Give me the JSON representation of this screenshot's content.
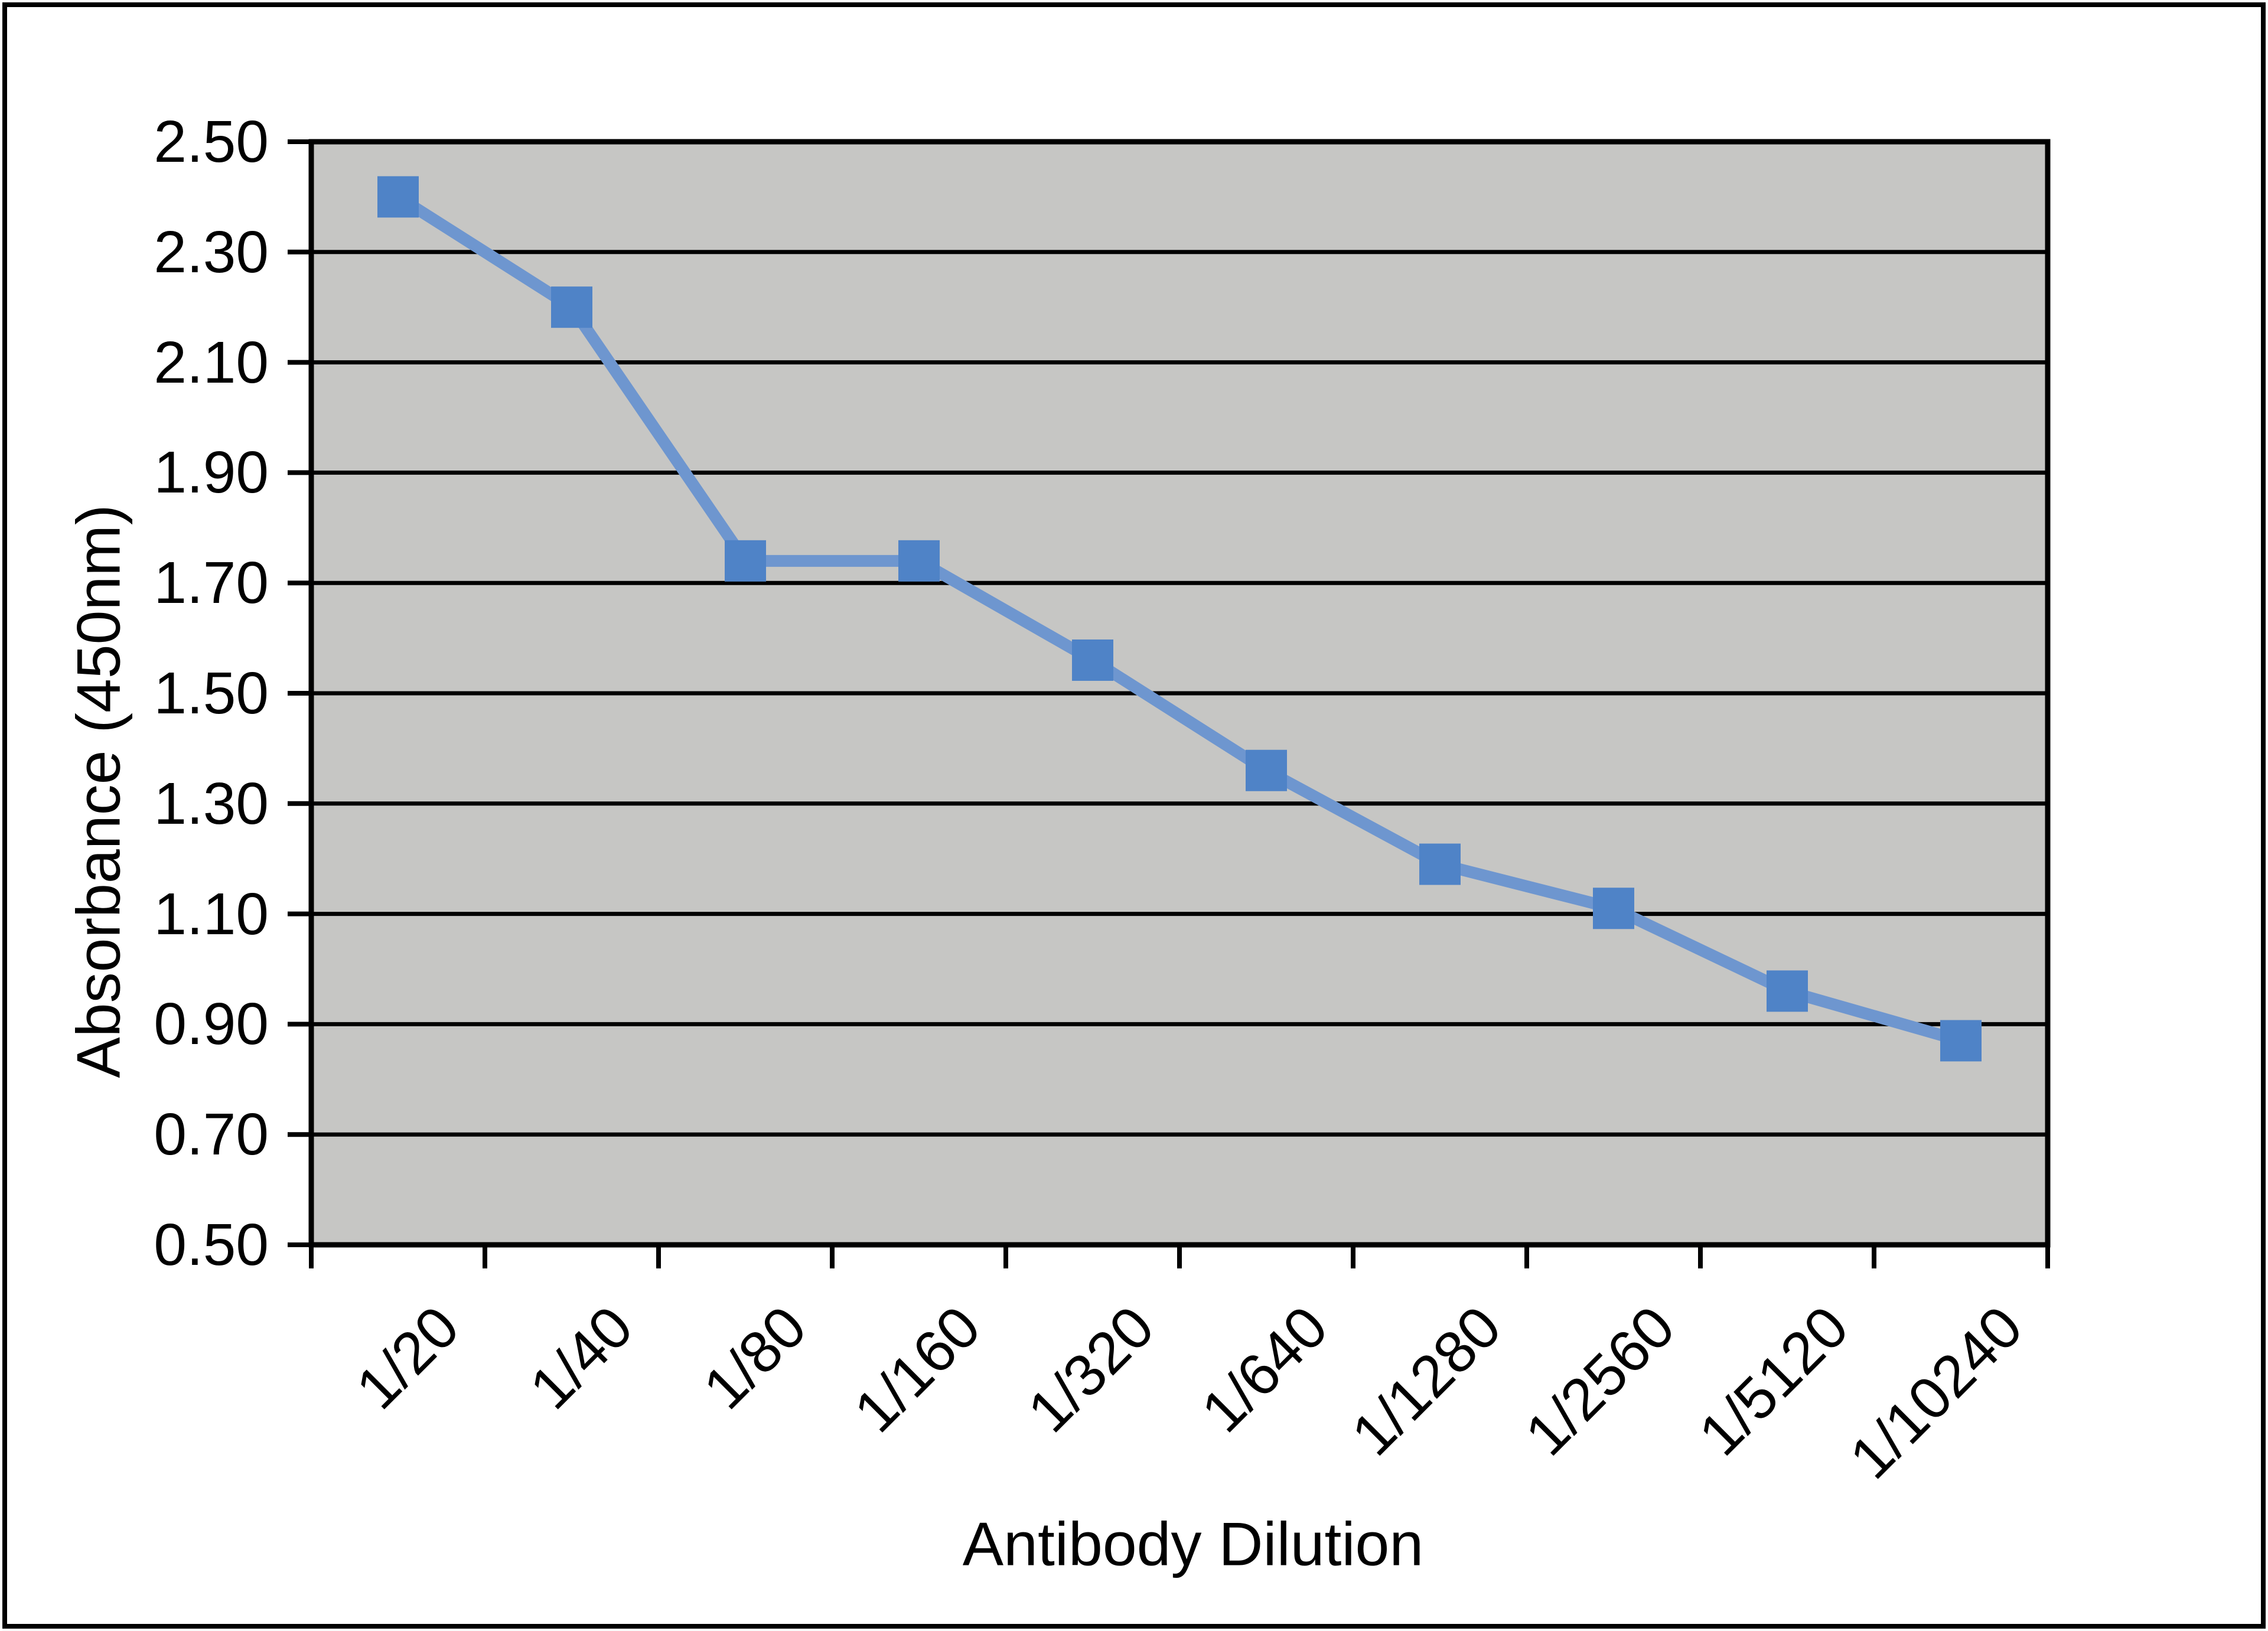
{
  "figure": {
    "background_color": "#ffffff",
    "border_color": "#000000"
  },
  "chart_data": {
    "type": "line",
    "title": "",
    "xlabel": "Antibody Dilution",
    "ylabel": "Absorbance (450nm)",
    "categories": [
      "1/20",
      "1/40",
      "1/80",
      "1/160",
      "1/320",
      "1/640",
      "1/1280",
      "1/2560",
      "1/5120",
      "1/10240"
    ],
    "values": [
      2.4,
      2.2,
      1.74,
      1.74,
      1.56,
      1.36,
      1.19,
      1.11,
      0.96,
      0.87
    ],
    "ylim": [
      0.5,
      2.5
    ],
    "ytick_step": 0.2,
    "ytick_labels": [
      "2.50",
      "2.30",
      "2.10",
      "1.90",
      "1.70",
      "1.50",
      "1.30",
      "1.10",
      "0.90",
      "0.70",
      "0.50"
    ],
    "grid": "horizontal",
    "legend": "none",
    "plot_bg_color": "#c6c6c4",
    "gridline_color": "#000000",
    "axis_color": "#000000",
    "line_color": "#6e96cf",
    "marker_color": "#4f83c7",
    "marker_shape": "square"
  }
}
